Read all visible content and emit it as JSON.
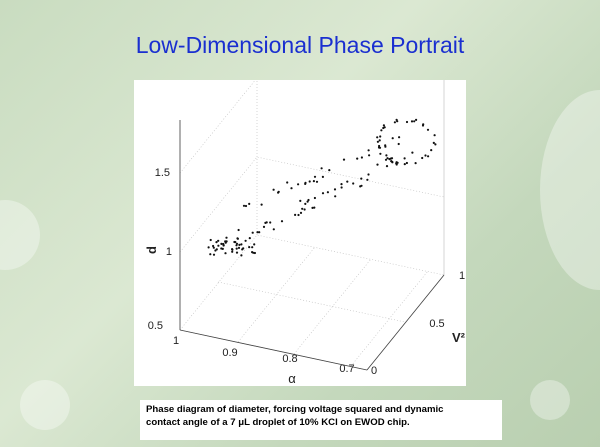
{
  "slide": {
    "title": "Low-Dimensional Phase Portrait",
    "figure": {
      "z_axis": {
        "label": "d",
        "ticks": [
          1.5,
          1,
          0.5
        ]
      },
      "x_axis": {
        "label": "α",
        "ticks": [
          1,
          0.9,
          0.8,
          0.7
        ]
      },
      "y_axis": {
        "label": "V²",
        "ticks": [
          0,
          0.5,
          1
        ]
      }
    },
    "caption": [
      "Phase diagram of diameter, forcing voltage squared and dynamic",
      "contact angle of a 7 μL droplet of 10% KCl on EWOD chip."
    ]
  }
}
